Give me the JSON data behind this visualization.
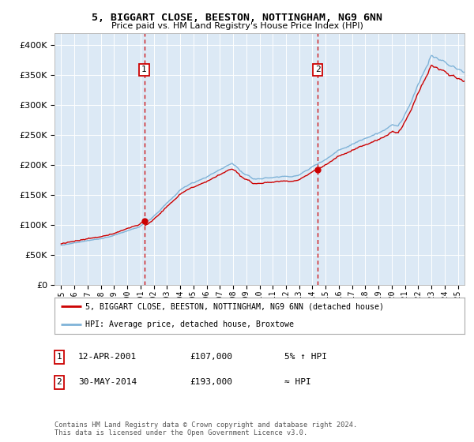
{
  "title1": "5, BIGGART CLOSE, BEESTON, NOTTINGHAM, NG9 6NN",
  "title2": "Price paid vs. HM Land Registry's House Price Index (HPI)",
  "legend_line1": "5, BIGGART CLOSE, BEESTON, NOTTINGHAM, NG9 6NN (detached house)",
  "legend_line2": "HPI: Average price, detached house, Broxtowe",
  "annotation1_label": "1",
  "annotation1_date": "12-APR-2001",
  "annotation1_price": "£107,000",
  "annotation1_note": "5% ↑ HPI",
  "annotation2_label": "2",
  "annotation2_date": "30-MAY-2014",
  "annotation2_price": "£193,000",
  "annotation2_note": "≈ HPI",
  "footer": "Contains HM Land Registry data © Crown copyright and database right 2024.\nThis data is licensed under the Open Government Licence v3.0.",
  "background_color": "#dce9f5",
  "line_color_property": "#cc0000",
  "line_color_hpi": "#7fb3d8",
  "vline_color": "#cc0000",
  "marker1_x": 2001.28,
  "marker1_y": 107000,
  "marker2_x": 2014.41,
  "marker2_y": 193000,
  "ylim": [
    0,
    420000
  ],
  "xlim": [
    1994.5,
    2025.5
  ],
  "yticks": [
    0,
    50000,
    100000,
    150000,
    200000,
    250000,
    300000,
    350000,
    400000
  ],
  "xtick_years": [
    1995,
    1996,
    1997,
    1998,
    1999,
    2000,
    2001,
    2002,
    2003,
    2004,
    2005,
    2006,
    2007,
    2008,
    2009,
    2010,
    2011,
    2012,
    2013,
    2014,
    2015,
    2016,
    2017,
    2018,
    2019,
    2020,
    2021,
    2022,
    2023,
    2024,
    2025
  ]
}
